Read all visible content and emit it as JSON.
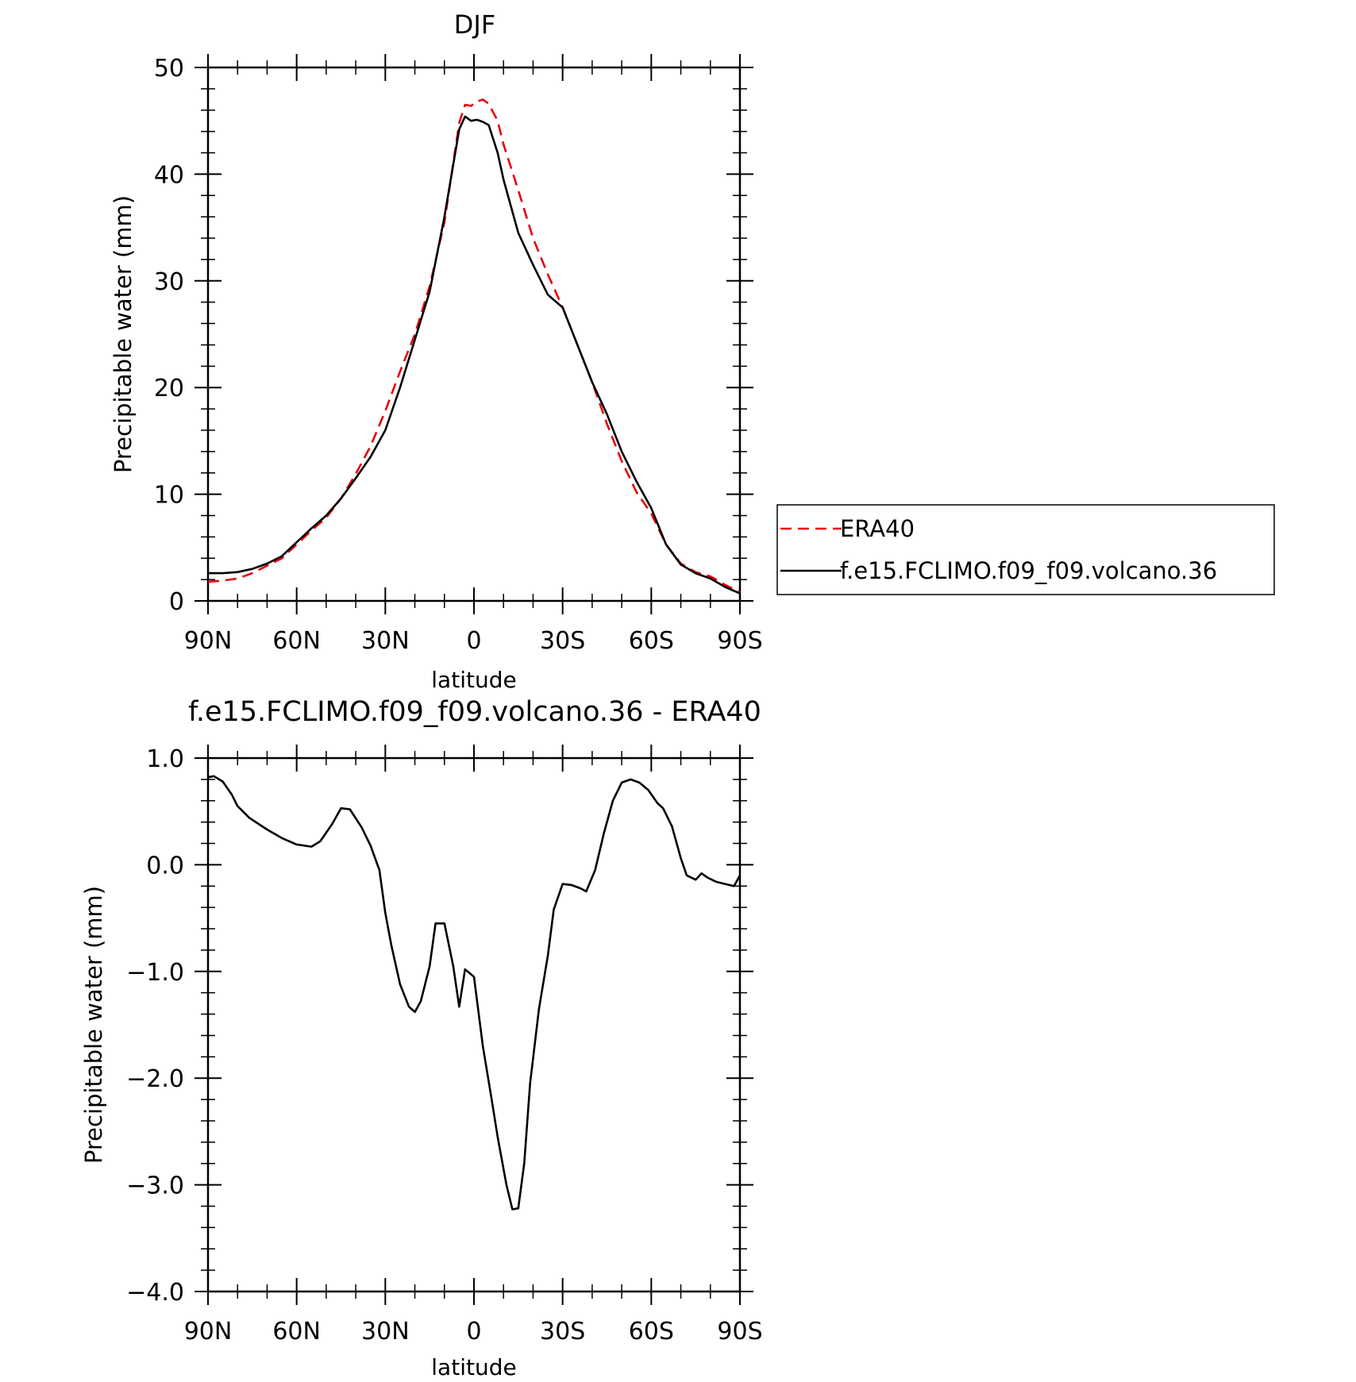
{
  "chart_data": [
    {
      "type": "line",
      "title": "DJF",
      "xlabel": "latitude",
      "ylabel": "Precipitable water (mm)",
      "xlim": [
        -90,
        90
      ],
      "ylim": [
        0,
        50
      ],
      "xticks": [
        -90,
        -60,
        -30,
        0,
        30,
        60,
        90
      ],
      "xtick_labels": [
        "90N",
        "60N",
        "30N",
        "0",
        "30S",
        "60S",
        "90S"
      ],
      "yticks": [
        0,
        10,
        20,
        30,
        40,
        50
      ],
      "ytick_labels": [
        "0",
        "10",
        "20",
        "30",
        "40",
        "50"
      ],
      "grid": false,
      "legend_position": "right",
      "legend_entries": [
        "ERA40",
        "f.e15.FCLIMO.f09_f09.volcano.36"
      ],
      "series": [
        {
          "name": "ERA40",
          "color": "#e8000b",
          "dash": "dashed",
          "x": [
            -90,
            -85,
            -80,
            -75,
            -70,
            -65,
            -60,
            -55,
            -50,
            -45,
            -40,
            -35,
            -30,
            -25,
            -20,
            -15,
            -10,
            -5,
            -3,
            -1,
            1,
            3,
            5,
            8,
            10,
            15,
            20,
            25,
            30,
            35,
            40,
            45,
            50,
            55,
            60,
            65,
            70,
            75,
            80,
            85,
            90
          ],
          "values": [
            1.8,
            1.9,
            2.1,
            2.6,
            3.3,
            4.0,
            5.3,
            6.6,
            7.8,
            9.6,
            11.9,
            14.5,
            17.8,
            21.5,
            25.0,
            29.5,
            35.5,
            44.8,
            46.5,
            46.4,
            46.8,
            47.0,
            46.6,
            45.0,
            42.8,
            38.5,
            34.0,
            30.6,
            27.5,
            24.0,
            20.5,
            16.6,
            13.1,
            10.2,
            8.2,
            5.3,
            3.5,
            2.7,
            2.3,
            1.5,
            0.8
          ]
        },
        {
          "name": "f.e15.FCLIMO.f09_f09.volcano.36",
          "color": "#000000",
          "dash": "solid",
          "x": [
            -90,
            -85,
            -80,
            -75,
            -70,
            -65,
            -60,
            -55,
            -50,
            -45,
            -40,
            -35,
            -30,
            -25,
            -20,
            -15,
            -10,
            -5,
            -3,
            -1,
            1,
            3,
            5,
            8,
            10,
            15,
            20,
            25,
            30,
            35,
            40,
            45,
            50,
            55,
            60,
            65,
            70,
            75,
            80,
            85,
            90
          ],
          "values": [
            2.6,
            2.6,
            2.7,
            3.0,
            3.5,
            4.2,
            5.5,
            6.8,
            8.0,
            9.6,
            11.5,
            13.5,
            16.0,
            20.0,
            24.5,
            29.0,
            36.0,
            44.2,
            45.4,
            45.0,
            45.1,
            44.9,
            44.6,
            42.0,
            39.5,
            34.5,
            31.5,
            28.7,
            27.5,
            24.0,
            20.5,
            17.5,
            14.0,
            11.2,
            8.7,
            5.3,
            3.4,
            2.6,
            2.1,
            1.3,
            0.7
          ]
        }
      ]
    },
    {
      "type": "line",
      "title": "f.e15.FCLIMO.f09_f09.volcano.36 - ERA40",
      "xlabel": "latitude",
      "ylabel": "Precipitable water (mm)",
      "xlim": [
        -90,
        90
      ],
      "ylim": [
        -4.0,
        1.0
      ],
      "xticks": [
        -90,
        -60,
        -30,
        0,
        30,
        60,
        90
      ],
      "xtick_labels": [
        "90N",
        "60N",
        "30N",
        "0",
        "30S",
        "60S",
        "90S"
      ],
      "yticks": [
        -4.0,
        -3.0,
        -2.0,
        -1.0,
        0.0,
        1.0
      ],
      "ytick_labels": [
        "-4.0",
        "-3.0",
        "-2.0",
        "-1.0",
        "0.0",
        "1.0"
      ],
      "grid": false,
      "series": [
        {
          "color": "#000000",
          "dash": "solid",
          "x": [
            -90,
            -88,
            -85,
            -82,
            -80,
            -76,
            -70,
            -65,
            -60,
            -55,
            -52,
            -48,
            -45,
            -42,
            -38,
            -35,
            -32,
            -30,
            -28,
            -25,
            -22,
            -20,
            -18,
            -15,
            -13,
            -10,
            -7,
            -5,
            -3,
            0,
            3,
            6,
            8,
            11,
            13,
            15,
            17,
            19,
            22,
            25,
            27,
            30,
            33,
            36,
            38,
            41,
            44,
            47,
            50,
            53,
            56,
            59,
            62,
            64,
            67,
            70,
            72,
            75,
            77,
            79,
            82,
            85,
            88,
            90
          ],
          "values": [
            0.82,
            0.83,
            0.78,
            0.66,
            0.55,
            0.44,
            0.33,
            0.25,
            0.19,
            0.17,
            0.22,
            0.38,
            0.53,
            0.52,
            0.35,
            0.18,
            -0.05,
            -0.45,
            -0.75,
            -1.12,
            -1.33,
            -1.38,
            -1.28,
            -0.95,
            -0.55,
            -0.55,
            -0.95,
            -1.33,
            -0.98,
            -1.05,
            -1.7,
            -2.2,
            -2.55,
            -3.0,
            -3.23,
            -3.22,
            -2.8,
            -2.05,
            -1.35,
            -0.85,
            -0.42,
            -0.18,
            -0.19,
            -0.22,
            -0.25,
            -0.05,
            0.3,
            0.6,
            0.77,
            0.8,
            0.77,
            0.7,
            0.58,
            0.53,
            0.36,
            0.06,
            -0.1,
            -0.14,
            -0.08,
            -0.12,
            -0.16,
            -0.18,
            -0.2,
            -0.1
          ]
        }
      ]
    }
  ]
}
